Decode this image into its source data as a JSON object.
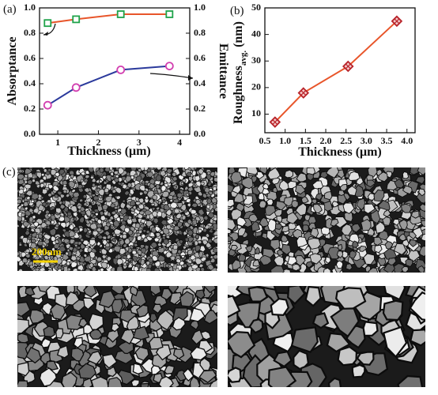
{
  "chart_data": [
    {
      "type": "line",
      "label": "(a)",
      "xlabel": "Thickness (μm)",
      "ylabel": "Absorptance",
      "y2label": "Emittance",
      "x": [
        0.75,
        1.45,
        2.55,
        3.75
      ],
      "xlim": [
        0.55,
        4.25
      ],
      "xticks": [
        1,
        2,
        3,
        4
      ],
      "ylim": [
        0,
        1
      ],
      "yticks": [
        {
          "value": 0,
          "label": "0.0"
        },
        0.2,
        0.4,
        0.6,
        0.8,
        {
          "value": 1,
          "label": "1.0"
        }
      ],
      "y2lim": [
        0,
        1
      ],
      "y2ticks": [
        {
          "value": 0,
          "label": "0.0"
        },
        0.2,
        0.4,
        0.6,
        0.8,
        {
          "value": 1,
          "label": "1.0"
        }
      ],
      "series": [
        {
          "color": "#e8552a",
          "marker": "square",
          "marker_color": "#1fa34a",
          "values": [
            0.88,
            0.91,
            0.95,
            0.95
          ]
        },
        {
          "color": "#2b3a9c",
          "marker": "circle",
          "marker_color": "#d23fb0",
          "axis": "y2",
          "values": [
            0.23,
            0.37,
            0.51,
            0.54
          ]
        }
      ]
    },
    {
      "type": "line",
      "label": "(b)",
      "xlabel": "Thickness (μm)",
      "ylabel": "Roughness",
      "ylabel_sub": "avg.",
      "ylabel_unit": "(nm)",
      "x": [
        0.75,
        1.45,
        2.55,
        3.75
      ],
      "xlim": [
        0.5,
        4.2
      ],
      "xticks": [
        0.5,
        {
          "value": 1,
          "label": "1.0"
        },
        1.5,
        {
          "value": 2,
          "label": "2.0"
        },
        2.5,
        {
          "value": 3,
          "label": "3.0"
        },
        3.5,
        {
          "value": 4,
          "label": "4.0"
        }
      ],
      "ylim": [
        3,
        50
      ],
      "yticks": [
        10,
        20,
        30,
        40,
        50
      ],
      "series": [
        {
          "color": "#e8552a",
          "marker": "diamond",
          "marker_color": "#b8232a",
          "values": [
            7,
            18,
            28,
            45
          ]
        }
      ]
    }
  ],
  "images": {
    "label": "(c)",
    "scale_bar": "200nm"
  }
}
